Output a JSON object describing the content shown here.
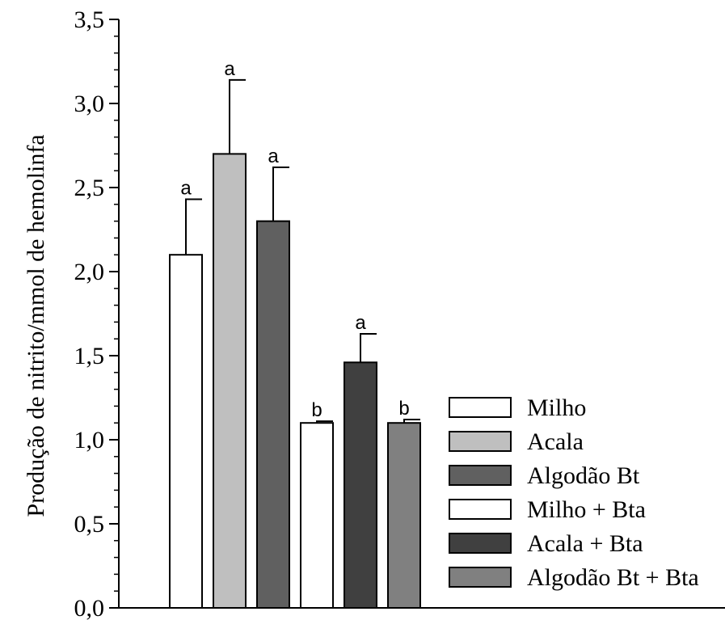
{
  "chart_data": {
    "type": "bar",
    "ylabel": "Produção de nitrito/mmol de hemolinfa",
    "ylim": [
      0,
      3.5
    ],
    "yticks": [
      "0,0",
      "0,5",
      "1,0",
      "1,5",
      "2,0",
      "2,5",
      "3,0",
      "3,5"
    ],
    "yminor_step": 0.1,
    "legend_position": "bottom-right",
    "series": [
      {
        "name": "Milho",
        "value": 2.1,
        "error": 0.33,
        "letter": "a",
        "color": "#ffffff"
      },
      {
        "name": "Acala",
        "value": 2.7,
        "error": 0.44,
        "letter": "a",
        "color": "#bfbfbf"
      },
      {
        "name": "Algodão Bt",
        "value": 2.3,
        "error": 0.32,
        "letter": "a",
        "color": "#606060"
      },
      {
        "name": "Milho + Bta",
        "value": 1.1,
        "error": 0.01,
        "letter": "b",
        "color": "#ffffff"
      },
      {
        "name": "Acala + Bta",
        "value": 1.46,
        "error": 0.17,
        "letter": "a",
        "color": "#404040"
      },
      {
        "name": "Algodão Bt + Bta",
        "value": 1.1,
        "error": 0.02,
        "letter": "b",
        "color": "#808080"
      }
    ]
  }
}
